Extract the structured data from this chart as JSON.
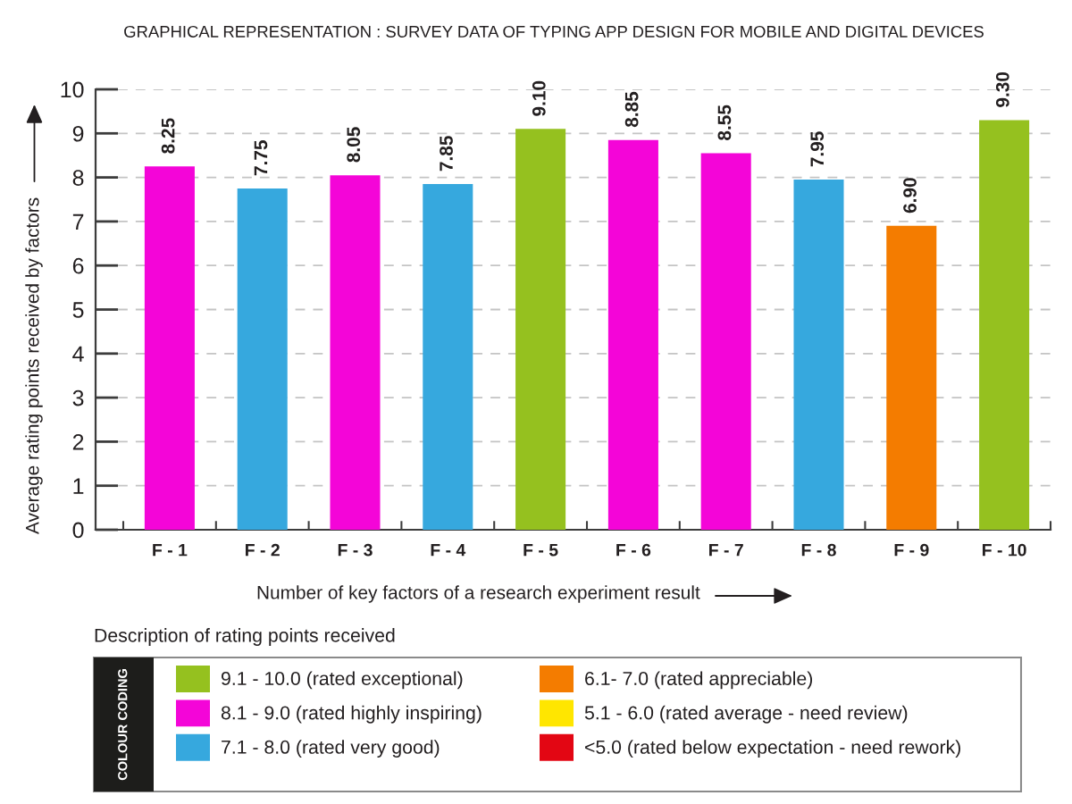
{
  "chart_data": {
    "type": "bar",
    "title": "GRAPHICAL REPRESENTATION : SURVEY DATA OF TYPING APP DESIGN FOR MOBILE AND DIGITAL DEVICES",
    "xlabel": "Number of key factors of a research experiment result",
    "ylabel": "Average rating points received by factors",
    "legend_title": "COLOUR CODING",
    "annotations": [
      "Description of rating points received"
    ],
    "categories": [
      "F - 1",
      "F - 2",
      "F - 3",
      "F - 4",
      "F - 5",
      "F - 6",
      "F - 7",
      "F - 8",
      "F - 9",
      "F - 10"
    ],
    "series": [
      {
        "name": "9.1 - 10.0 (rated exceptional)",
        "color": "#95c11f",
        "values": [
          null,
          null,
          null,
          null,
          9.1,
          null,
          null,
          null,
          null,
          9.3
        ],
        "value_labels": [
          null,
          null,
          null,
          null,
          "9.10",
          null,
          null,
          null,
          null,
          "9.30"
        ]
      },
      {
        "name": "8.1 - 9.0 (rated highly inspiring)",
        "color": "#f405d8",
        "values": [
          8.25,
          null,
          8.05,
          null,
          null,
          8.85,
          8.55,
          null,
          null,
          null
        ],
        "value_labels": [
          "8.25",
          null,
          "8.05",
          null,
          null,
          "8.85",
          "8.55",
          null,
          null,
          null
        ]
      },
      {
        "name": "7.1 - 8.0 (rated very good)",
        "color": "#36a8de",
        "values": [
          null,
          7.75,
          null,
          7.85,
          null,
          null,
          null,
          7.95,
          null,
          null
        ],
        "value_labels": [
          null,
          "7.75",
          null,
          "7.85",
          null,
          null,
          null,
          "7.95",
          null,
          null
        ]
      },
      {
        "name": "6.1- 7.0 (rated appreciable)",
        "color": "#f47c00",
        "values": [
          null,
          null,
          null,
          null,
          null,
          null,
          null,
          null,
          6.9,
          null
        ],
        "value_labels": [
          null,
          null,
          null,
          null,
          null,
          null,
          null,
          null,
          "6.90",
          null
        ]
      },
      {
        "name": "5.1 - 6.0 (rated average - need review)",
        "color": "#ffe600",
        "values": [
          null,
          null,
          null,
          null,
          null,
          null,
          null,
          null,
          null,
          null
        ]
      },
      {
        "name": "<5.0 (rated below expectation - need rework)",
        "color": "#e30613",
        "values": [
          null,
          null,
          null,
          null,
          null,
          null,
          null,
          null,
          null,
          null
        ]
      }
    ],
    "stacked": true,
    "ylim": [
      0,
      10
    ],
    "yticks": [
      0,
      1,
      2,
      3,
      4,
      5,
      6,
      7,
      8,
      9,
      10
    ],
    "grid": "y",
    "legend": "bottom"
  }
}
